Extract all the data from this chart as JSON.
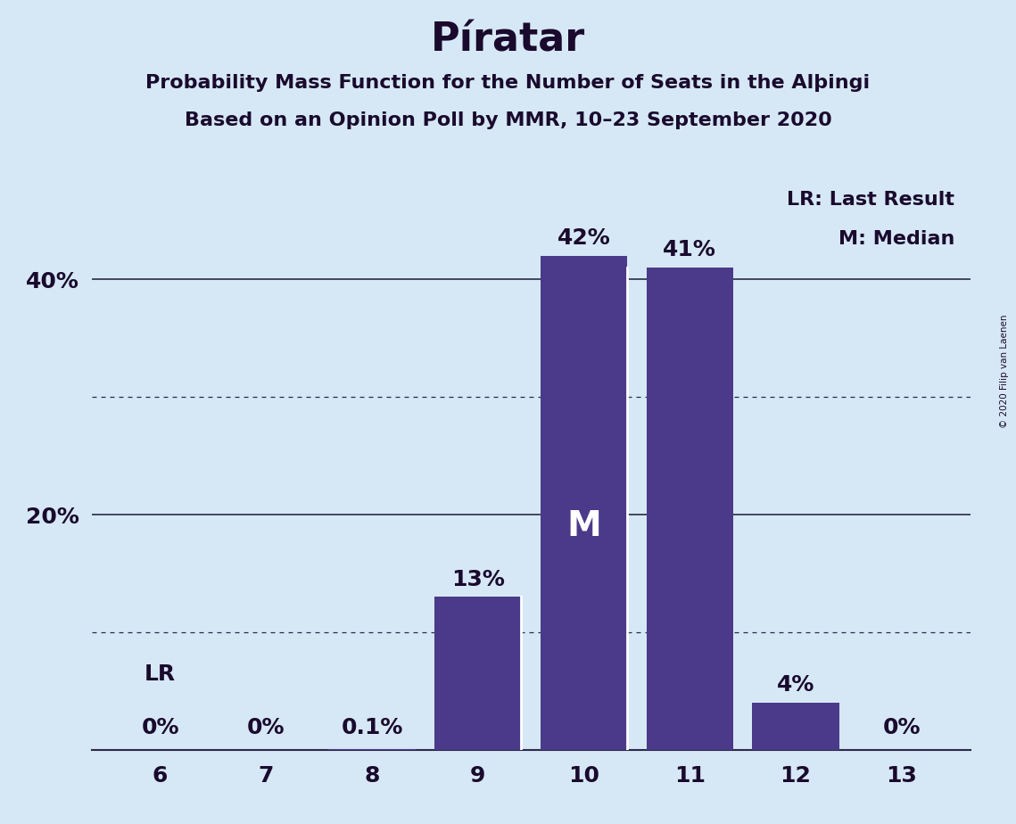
{
  "title": "Píratar",
  "subtitle1": "Probability Mass Function for the Number of Seats in the Alþingi",
  "subtitle2": "Based on an Opinion Poll by MMR, 10–23 September 2020",
  "copyright": "© 2020 Filip van Laenen",
  "categories": [
    6,
    7,
    8,
    9,
    10,
    11,
    12,
    13
  ],
  "values": [
    0.0,
    0.0,
    0.1,
    13.0,
    42.0,
    41.0,
    4.0,
    0.0
  ],
  "bar_color": "#4B3A8A",
  "background_color": "#D6E8F5",
  "label_color": "#1a0a2e",
  "bar_labels": [
    "0%",
    "0%",
    "0.1%",
    "13%",
    "42%",
    "41%",
    "4%",
    "0%"
  ],
  "median_seat": 10,
  "lr_seat": 6,
  "ylim": [
    0,
    48
  ],
  "solid_yticks": [
    20,
    40
  ],
  "dotted_yticks": [
    10,
    30
  ],
  "legend_text1": "LR: Last Result",
  "legend_text2": "M: Median",
  "lr_label": "LR",
  "median_label": "M",
  "title_fontsize": 32,
  "subtitle_fontsize": 16,
  "bar_label_fontsize": 18,
  "axis_label_fontsize": 18,
  "legend_fontsize": 16,
  "bar_width": 0.82
}
